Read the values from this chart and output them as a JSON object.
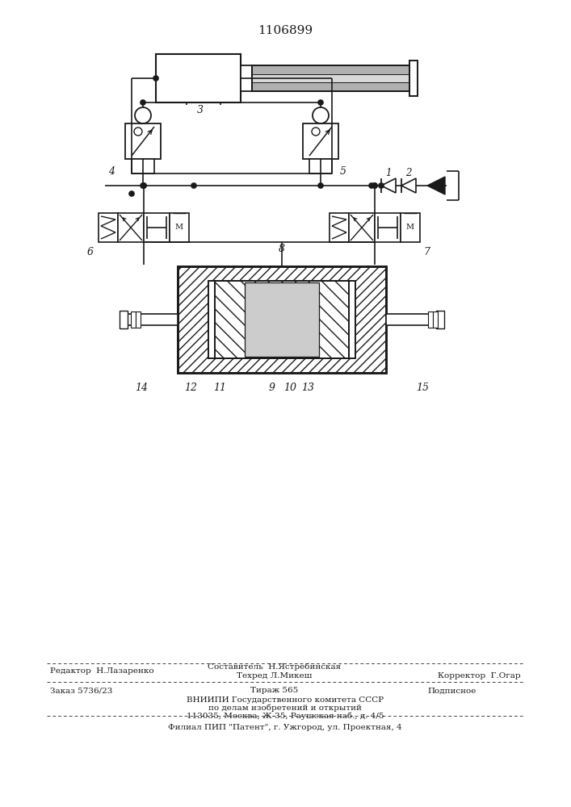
{
  "title": "1106899",
  "bg_color": "#ffffff",
  "lc": "#1a1a1a",
  "footer": {
    "line1_left": "Редактор  Н.Лазаренко",
    "line1_center_top": "Составитель  Н.Ястребинская",
    "line1_center_bot": "Техред Л.Микеш",
    "line1_right": "Корректор  Г.Огар",
    "line2_left": "Заказ 5736/23",
    "line2_center": "Тираж 565",
    "line2_right": "Подписное",
    "line3": "ВНИИПИ Государственного комитета СССР",
    "line4": "по делам изобретений и открытий",
    "line5": "113035, Москва, Ж-35, Раушская наб., д. 4/5",
    "line6": "Филиал ПИП \"Патент\", г. Ужгород, ул. Проектная, 4"
  }
}
